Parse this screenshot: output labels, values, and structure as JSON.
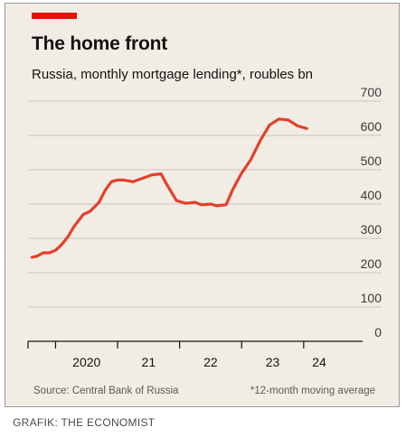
{
  "header": {
    "title": "The home front",
    "subtitle": "Russia, monthly mortgage lending*, roubles bn"
  },
  "footer": {
    "source": "Source: Central Bank of Russia",
    "footnote": "*12-month moving average"
  },
  "credit": "GRAFIK: THE ECONOMIST",
  "colors": {
    "accent": "#e3120b",
    "line": "#e3402b",
    "background": "#f2ede4",
    "grid": "#c9c4bb"
  },
  "chart_data": {
    "type": "line",
    "title": "The home front",
    "subtitle": "Russia, monthly mortgage lending*, roubles bn",
    "xlabel": "",
    "ylabel": "",
    "ylim": [
      0,
      700
    ],
    "yticks": [
      0,
      100,
      200,
      300,
      400,
      500,
      600,
      700
    ],
    "xlim": [
      2019.6,
      2024.6
    ],
    "xtick_labels": [
      {
        "x": 2020.5,
        "label": "2020"
      },
      {
        "x": 2021.5,
        "label": "21"
      },
      {
        "x": 2022.5,
        "label": "22"
      },
      {
        "x": 2023.5,
        "label": "23"
      },
      {
        "x": 2024.25,
        "label": "24"
      }
    ],
    "year_boundaries": [
      2020,
      2021,
      2022,
      2023,
      2024
    ],
    "grid": true,
    "y_axis_position": "right",
    "series": [
      {
        "values": [
          [
            2019.62,
            245
          ],
          [
            2019.7,
            248
          ],
          [
            2019.8,
            258
          ],
          [
            2019.9,
            258
          ],
          [
            2020.0,
            265
          ],
          [
            2020.1,
            282
          ],
          [
            2020.2,
            305
          ],
          [
            2020.3,
            335
          ],
          [
            2020.45,
            370
          ],
          [
            2020.55,
            378
          ],
          [
            2020.7,
            405
          ],
          [
            2020.8,
            440
          ],
          [
            2020.9,
            465
          ],
          [
            2021.0,
            470
          ],
          [
            2021.1,
            470
          ],
          [
            2021.25,
            465
          ],
          [
            2021.4,
            475
          ],
          [
            2021.55,
            485
          ],
          [
            2021.7,
            488
          ],
          [
            2021.8,
            455
          ],
          [
            2021.95,
            410
          ],
          [
            2022.1,
            402
          ],
          [
            2022.25,
            405
          ],
          [
            2022.35,
            398
          ],
          [
            2022.5,
            400
          ],
          [
            2022.6,
            395
          ],
          [
            2022.75,
            398
          ],
          [
            2022.85,
            440
          ],
          [
            2023.0,
            490
          ],
          [
            2023.15,
            530
          ],
          [
            2023.3,
            585
          ],
          [
            2023.45,
            630
          ],
          [
            2023.6,
            648
          ],
          [
            2023.75,
            645
          ],
          [
            2023.9,
            628
          ],
          [
            2024.05,
            620
          ]
        ]
      }
    ]
  }
}
